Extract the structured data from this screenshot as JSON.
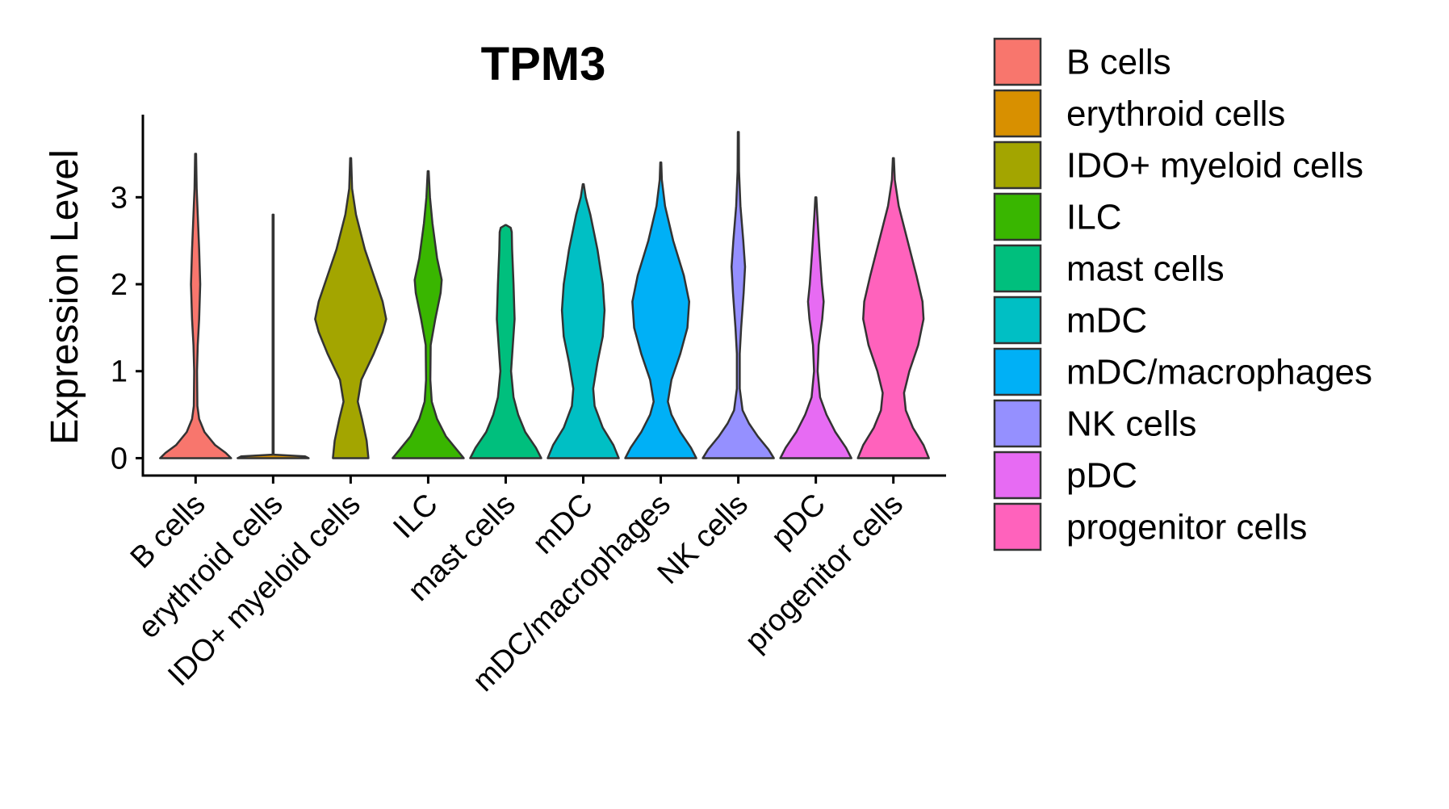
{
  "chart_data": {
    "type": "violin",
    "title": "TPM3",
    "xlabel": "",
    "ylabel": "Expression Level",
    "ylim": [
      -0.2,
      3.95
    ],
    "yticks": [
      0,
      1,
      2,
      3
    ],
    "categories": [
      "B cells",
      "erythroid cells",
      "IDO+ myeloid cells",
      "ILC",
      "mast cells",
      "mDC",
      "mDC/macrophages",
      "NK cells",
      "pDC",
      "progenitor cells"
    ],
    "colors": [
      "#F8766D",
      "#D89000",
      "#A3A500",
      "#39B600",
      "#00BF7D",
      "#00BFC4",
      "#00B0F6",
      "#9590FF",
      "#E76BF3",
      "#FF62BC"
    ],
    "legend_title": "",
    "legend_position": "right",
    "violins": [
      {
        "name": "B cells",
        "max": 3.5,
        "profile": [
          [
            0.0,
            1.0
          ],
          [
            0.06,
            0.85
          ],
          [
            0.15,
            0.55
          ],
          [
            0.3,
            0.25
          ],
          [
            0.45,
            0.1
          ],
          [
            0.6,
            0.05
          ],
          [
            1.0,
            0.04
          ],
          [
            1.3,
            0.06
          ],
          [
            1.6,
            0.1
          ],
          [
            2.0,
            0.13
          ],
          [
            2.4,
            0.1
          ],
          [
            2.8,
            0.06
          ],
          [
            3.1,
            0.03
          ],
          [
            3.5,
            0.0
          ]
        ]
      },
      {
        "name": "erythroid cells",
        "max": 2.8,
        "profile": [
          [
            0.0,
            1.0
          ],
          [
            0.02,
            0.9
          ],
          [
            0.04,
            0.01
          ],
          [
            0.5,
            0.01
          ],
          [
            1.5,
            0.01
          ],
          [
            2.8,
            0.0
          ]
        ]
      },
      {
        "name": "IDO+ myeloid cells",
        "max": 3.45,
        "profile": [
          [
            0.0,
            0.5
          ],
          [
            0.2,
            0.45
          ],
          [
            0.45,
            0.32
          ],
          [
            0.65,
            0.2
          ],
          [
            0.9,
            0.3
          ],
          [
            1.2,
            0.65
          ],
          [
            1.45,
            0.9
          ],
          [
            1.6,
            1.0
          ],
          [
            1.8,
            0.9
          ],
          [
            2.1,
            0.65
          ],
          [
            2.4,
            0.4
          ],
          [
            2.8,
            0.15
          ],
          [
            3.1,
            0.04
          ],
          [
            3.45,
            0.0
          ]
        ]
      },
      {
        "name": "ILC",
        "max": 3.3,
        "profile": [
          [
            0.0,
            1.0
          ],
          [
            0.1,
            0.8
          ],
          [
            0.25,
            0.5
          ],
          [
            0.45,
            0.25
          ],
          [
            0.65,
            0.1
          ],
          [
            0.9,
            0.06
          ],
          [
            1.3,
            0.07
          ],
          [
            1.6,
            0.2
          ],
          [
            1.9,
            0.35
          ],
          [
            2.05,
            0.38
          ],
          [
            2.3,
            0.25
          ],
          [
            2.7,
            0.12
          ],
          [
            3.0,
            0.05
          ],
          [
            3.3,
            0.0
          ]
        ]
      },
      {
        "name": "mast cells",
        "max": 2.68,
        "profile": [
          [
            0.0,
            1.0
          ],
          [
            0.12,
            0.85
          ],
          [
            0.3,
            0.55
          ],
          [
            0.5,
            0.35
          ],
          [
            0.7,
            0.22
          ],
          [
            1.0,
            0.15
          ],
          [
            1.3,
            0.2
          ],
          [
            1.6,
            0.25
          ],
          [
            2.0,
            0.22
          ],
          [
            2.4,
            0.18
          ],
          [
            2.6,
            0.17
          ],
          [
            2.65,
            0.14
          ],
          [
            2.68,
            0.0
          ]
        ]
      },
      {
        "name": "mDC",
        "max": 3.15,
        "profile": [
          [
            0.0,
            1.0
          ],
          [
            0.15,
            0.85
          ],
          [
            0.35,
            0.55
          ],
          [
            0.6,
            0.32
          ],
          [
            0.8,
            0.28
          ],
          [
            1.1,
            0.4
          ],
          [
            1.4,
            0.55
          ],
          [
            1.7,
            0.6
          ],
          [
            2.0,
            0.55
          ],
          [
            2.4,
            0.4
          ],
          [
            2.8,
            0.2
          ],
          [
            3.0,
            0.07
          ],
          [
            3.15,
            0.0
          ]
        ]
      },
      {
        "name": "mDC/macrophages",
        "max": 3.4,
        "profile": [
          [
            0.0,
            1.0
          ],
          [
            0.12,
            0.85
          ],
          [
            0.3,
            0.55
          ],
          [
            0.5,
            0.3
          ],
          [
            0.65,
            0.2
          ],
          [
            0.9,
            0.3
          ],
          [
            1.2,
            0.55
          ],
          [
            1.5,
            0.75
          ],
          [
            1.8,
            0.8
          ],
          [
            2.1,
            0.65
          ],
          [
            2.5,
            0.35
          ],
          [
            2.9,
            0.12
          ],
          [
            3.2,
            0.03
          ],
          [
            3.4,
            0.0
          ]
        ]
      },
      {
        "name": "NK cells",
        "max": 3.75,
        "profile": [
          [
            0.0,
            1.0
          ],
          [
            0.1,
            0.85
          ],
          [
            0.25,
            0.55
          ],
          [
            0.4,
            0.3
          ],
          [
            0.55,
            0.12
          ],
          [
            0.8,
            0.04
          ],
          [
            1.2,
            0.04
          ],
          [
            1.5,
            0.08
          ],
          [
            1.9,
            0.15
          ],
          [
            2.2,
            0.19
          ],
          [
            2.5,
            0.14
          ],
          [
            2.9,
            0.06
          ],
          [
            3.3,
            0.02
          ],
          [
            3.75,
            0.0
          ]
        ]
      },
      {
        "name": "pDC",
        "max": 3.0,
        "profile": [
          [
            0.0,
            1.0
          ],
          [
            0.12,
            0.85
          ],
          [
            0.3,
            0.55
          ],
          [
            0.5,
            0.3
          ],
          [
            0.7,
            0.12
          ],
          [
            1.0,
            0.05
          ],
          [
            1.3,
            0.08
          ],
          [
            1.6,
            0.18
          ],
          [
            1.8,
            0.22
          ],
          [
            2.0,
            0.17
          ],
          [
            2.4,
            0.1
          ],
          [
            2.8,
            0.04
          ],
          [
            3.0,
            0.0
          ]
        ]
      },
      {
        "name": "progenitor cells",
        "max": 3.45,
        "profile": [
          [
            0.0,
            1.0
          ],
          [
            0.15,
            0.85
          ],
          [
            0.35,
            0.55
          ],
          [
            0.55,
            0.35
          ],
          [
            0.75,
            0.3
          ],
          [
            1.0,
            0.45
          ],
          [
            1.3,
            0.7
          ],
          [
            1.6,
            0.85
          ],
          [
            1.8,
            0.82
          ],
          [
            2.1,
            0.65
          ],
          [
            2.5,
            0.4
          ],
          [
            2.9,
            0.15
          ],
          [
            3.2,
            0.04
          ],
          [
            3.45,
            0.0
          ]
        ]
      }
    ]
  }
}
